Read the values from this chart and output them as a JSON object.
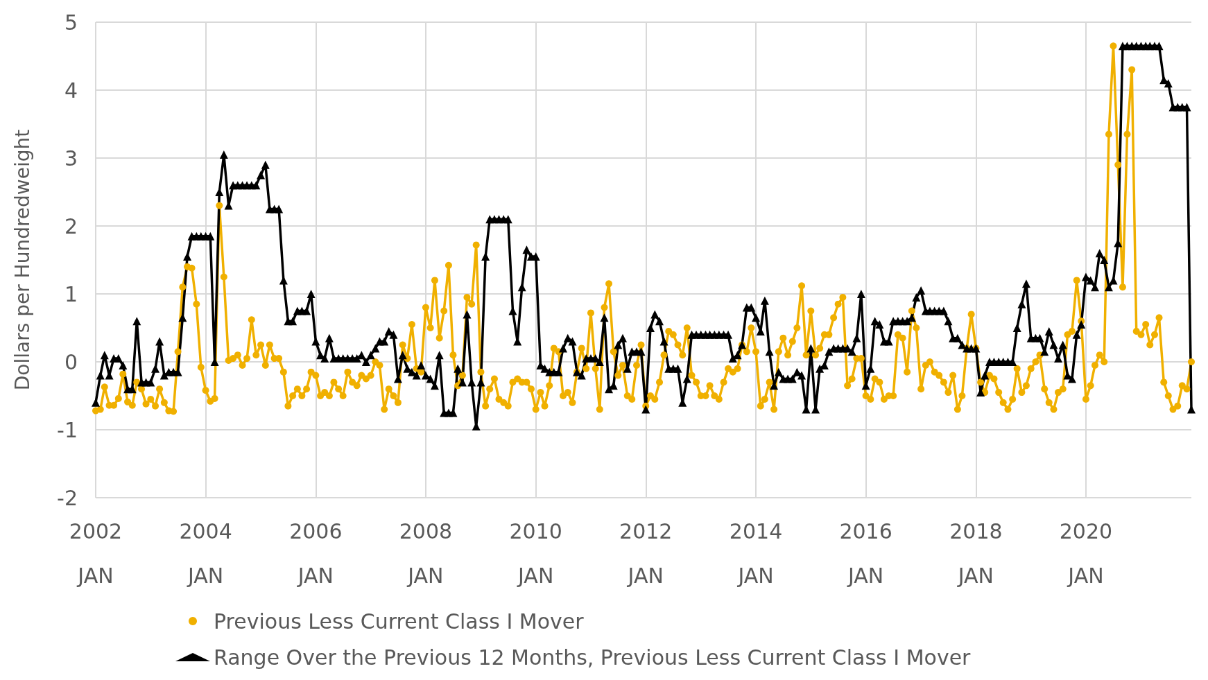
{
  "chart_data": {
    "type": "line",
    "ylabel": "Dollars per Hundredweight",
    "x": [
      "2002-01",
      "2002-02",
      "2002-03",
      "2002-04",
      "2002-05",
      "2002-06",
      "2002-07",
      "2002-08",
      "2002-09",
      "2002-10",
      "2002-11",
      "2002-12",
      "2003-01",
      "2003-02",
      "2003-03",
      "2003-04",
      "2003-05",
      "2003-06",
      "2003-07",
      "2003-08",
      "2003-09",
      "2003-10",
      "2003-11",
      "2003-12",
      "2004-01",
      "2004-02",
      "2004-03",
      "2004-04",
      "2004-05",
      "2004-06",
      "2004-07",
      "2004-08",
      "2004-09",
      "2004-10",
      "2004-11",
      "2004-12",
      "2005-01",
      "2005-02",
      "2005-03",
      "2005-04",
      "2005-05",
      "2005-06",
      "2005-07",
      "2005-08",
      "2005-09",
      "2005-10",
      "2005-11",
      "2005-12",
      "2006-01",
      "2006-02",
      "2006-03",
      "2006-04",
      "2006-05",
      "2006-06",
      "2006-07",
      "2006-08",
      "2006-09",
      "2006-10",
      "2006-11",
      "2006-12",
      "2007-01",
      "2007-02",
      "2007-03",
      "2007-04",
      "2007-05",
      "2007-06",
      "2007-07",
      "2007-08",
      "2007-09",
      "2007-10",
      "2007-11",
      "2007-12",
      "2008-01",
      "2008-02",
      "2008-03",
      "2008-04",
      "2008-05",
      "2008-06",
      "2008-07",
      "2008-08",
      "2008-09",
      "2008-10",
      "2008-11",
      "2008-12",
      "2009-01",
      "2009-02",
      "2009-03",
      "2009-04",
      "2009-05",
      "2009-06",
      "2009-07",
      "2009-08",
      "2009-09",
      "2009-10",
      "2009-11",
      "2009-12",
      "2010-01",
      "2010-02",
      "2010-03",
      "2010-04",
      "2010-05",
      "2010-06",
      "2010-07",
      "2010-08",
      "2010-09",
      "2010-10",
      "2010-11",
      "2010-12",
      "2011-01",
      "2011-02",
      "2011-03",
      "2011-04",
      "2011-05",
      "2011-06",
      "2011-07",
      "2011-08",
      "2011-09",
      "2011-10",
      "2011-11",
      "2011-12",
      "2012-01",
      "2012-02",
      "2012-03",
      "2012-04",
      "2012-05",
      "2012-06",
      "2012-07",
      "2012-08",
      "2012-09",
      "2012-10",
      "2012-11",
      "2012-12",
      "2013-01",
      "2013-02",
      "2013-03",
      "2013-04",
      "2013-05",
      "2013-06",
      "2013-07",
      "2013-08",
      "2013-09",
      "2013-10",
      "2013-11",
      "2013-12",
      "2014-01",
      "2014-02",
      "2014-03",
      "2014-04",
      "2014-05",
      "2014-06",
      "2014-07",
      "2014-08",
      "2014-09",
      "2014-10",
      "2014-11",
      "2014-12",
      "2015-01",
      "2015-02",
      "2015-03",
      "2015-04",
      "2015-05",
      "2015-06",
      "2015-07",
      "2015-08",
      "2015-09",
      "2015-10",
      "2015-11",
      "2015-12",
      "2016-01",
      "2016-02",
      "2016-03",
      "2016-04",
      "2016-05",
      "2016-06",
      "2016-07",
      "2016-08",
      "2016-09",
      "2016-10",
      "2016-11",
      "2016-12",
      "2017-01",
      "2017-02",
      "2017-03",
      "2017-04",
      "2017-05",
      "2017-06",
      "2017-07",
      "2017-08",
      "2017-09",
      "2017-10",
      "2017-11",
      "2017-12",
      "2018-01",
      "2018-02",
      "2018-03",
      "2018-04",
      "2018-05",
      "2018-06",
      "2018-07",
      "2018-08",
      "2018-09",
      "2018-10",
      "2018-11",
      "2018-12",
      "2019-01",
      "2019-02",
      "2019-03",
      "2019-04",
      "2019-05",
      "2019-06",
      "2019-07",
      "2019-08",
      "2019-09",
      "2019-10",
      "2019-11",
      "2019-12",
      "2020-01",
      "2020-02",
      "2020-03",
      "2020-04",
      "2020-05",
      "2020-06",
      "2020-07",
      "2020-08",
      "2020-09",
      "2020-10",
      "2020-11",
      "2020-12",
      "2021-01",
      "2021-02",
      "2021-03",
      "2021-04",
      "2021-05",
      "2021-06",
      "2021-07",
      "2021-08",
      "2021-09",
      "2021-10",
      "2021-11",
      "2021-12"
    ],
    "series": [
      {
        "name": "Previous Less Current Class I Mover",
        "color": "#f0b000",
        "marker": "circle",
        "values": [
          -0.72,
          -0.7,
          -0.37,
          -0.64,
          -0.64,
          -0.54,
          -0.18,
          -0.59,
          -0.64,
          -0.3,
          -0.4,
          -0.62,
          -0.55,
          -0.65,
          -0.4,
          -0.6,
          -0.72,
          -0.73,
          0.15,
          1.1,
          1.4,
          1.38,
          0.85,
          -0.08,
          -0.42,
          -0.58,
          -0.54,
          2.3,
          1.25,
          0.02,
          0.05,
          0.1,
          -0.05,
          0.05,
          0.62,
          0.1,
          0.25,
          -0.05,
          0.25,
          0.05,
          0.05,
          -0.15,
          -0.65,
          -0.5,
          -0.4,
          -0.5,
          -0.4,
          -0.15,
          -0.2,
          -0.5,
          -0.45,
          -0.5,
          -0.3,
          -0.4,
          -0.5,
          -0.15,
          -0.3,
          -0.35,
          -0.2,
          -0.25,
          -0.2,
          0.0,
          -0.05,
          -0.7,
          -0.4,
          -0.5,
          -0.6,
          0.25,
          0.05,
          0.55,
          -0.1,
          -0.15,
          0.8,
          0.5,
          1.2,
          0.35,
          0.75,
          1.42,
          0.1,
          -0.35,
          -0.2,
          0.95,
          0.85,
          1.72,
          -0.15,
          -0.65,
          -0.4,
          -0.25,
          -0.55,
          -0.6,
          -0.65,
          -0.3,
          -0.25,
          -0.3,
          -0.3,
          -0.4,
          -0.7,
          -0.45,
          -0.65,
          -0.35,
          0.2,
          0.15,
          -0.5,
          -0.45,
          -0.6,
          -0.15,
          0.2,
          -0.1,
          0.72,
          -0.1,
          -0.7,
          0.8,
          1.15,
          0.15,
          -0.2,
          -0.05,
          -0.5,
          -0.55,
          -0.05,
          0.25,
          -0.65,
          -0.5,
          -0.55,
          -0.3,
          0.1,
          0.45,
          0.4,
          0.25,
          0.1,
          0.5,
          -0.2,
          -0.3,
          -0.5,
          -0.5,
          -0.35,
          -0.5,
          -0.55,
          -0.3,
          -0.1,
          -0.15,
          -0.1,
          0.25,
          0.15,
          0.5,
          0.15,
          -0.65,
          -0.55,
          -0.3,
          -0.7,
          0.15,
          0.35,
          0.1,
          0.3,
          0.5,
          1.12,
          0.1,
          0.75,
          0.1,
          0.2,
          0.4,
          0.4,
          0.65,
          0.85,
          0.95,
          -0.35,
          -0.25,
          0.05,
          0.05,
          -0.5,
          -0.55,
          -0.25,
          -0.3,
          -0.55,
          -0.5,
          -0.5,
          0.4,
          0.35,
          -0.15,
          0.75,
          0.5,
          -0.4,
          -0.05,
          0.0,
          -0.15,
          -0.2,
          -0.3,
          -0.45,
          -0.2,
          -0.7,
          -0.5,
          0.2,
          0.7,
          0.2,
          -0.3,
          -0.45,
          -0.2,
          -0.25,
          -0.45,
          -0.6,
          -0.7,
          -0.55,
          -0.1,
          -0.45,
          -0.35,
          -0.1,
          0.0,
          0.1,
          -0.4,
          -0.6,
          -0.7,
          -0.45,
          -0.4,
          0.4,
          0.45,
          1.2,
          0.6,
          -0.55,
          -0.35,
          -0.05,
          0.1,
          0.0,
          3.35,
          4.65,
          2.9,
          1.1,
          3.35,
          4.3,
          0.45,
          0.4,
          0.55,
          0.25,
          0.4,
          0.65,
          -0.3,
          -0.5,
          -0.7,
          -0.65,
          -0.35,
          -0.4,
          0.0
        ]
      },
      {
        "name": "Range Over the Previous 12 Months, Previous Less Current Class I Mover",
        "color": "#000000",
        "marker": "triangle",
        "values": [
          -0.6,
          -0.2,
          0.1,
          -0.2,
          0.05,
          0.05,
          -0.05,
          -0.4,
          -0.4,
          0.6,
          -0.3,
          -0.3,
          -0.3,
          -0.1,
          0.3,
          -0.2,
          -0.15,
          -0.15,
          -0.15,
          0.65,
          1.55,
          1.85,
          1.85,
          1.85,
          1.85,
          1.85,
          0.0,
          2.5,
          3.05,
          2.3,
          2.6,
          2.6,
          2.6,
          2.6,
          2.6,
          2.6,
          2.75,
          2.9,
          2.25,
          2.25,
          2.25,
          1.2,
          0.6,
          0.6,
          0.75,
          0.75,
          0.75,
          1.0,
          0.3,
          0.1,
          0.05,
          0.35,
          0.05,
          0.05,
          0.05,
          0.05,
          0.05,
          0.05,
          0.1,
          0.0,
          0.1,
          0.2,
          0.3,
          0.3,
          0.45,
          0.4,
          -0.25,
          0.1,
          -0.1,
          -0.15,
          -0.2,
          -0.05,
          -0.2,
          -0.25,
          -0.35,
          0.1,
          -0.75,
          -0.75,
          -0.75,
          -0.1,
          -0.3,
          0.7,
          -0.3,
          -0.95,
          -0.3,
          1.55,
          2.1,
          2.1,
          2.1,
          2.1,
          2.1,
          0.75,
          0.3,
          1.1,
          1.65,
          1.55,
          1.55,
          -0.05,
          -0.1,
          -0.15,
          -0.15,
          -0.15,
          0.2,
          0.35,
          0.3,
          -0.15,
          -0.2,
          0.05,
          0.05,
          0.05,
          0.0,
          0.65,
          -0.4,
          -0.35,
          0.25,
          0.35,
          -0.1,
          0.15,
          0.15,
          0.15,
          -0.7,
          0.5,
          0.7,
          0.6,
          0.3,
          -0.1,
          -0.1,
          -0.1,
          -0.6,
          -0.25,
          0.4,
          0.4,
          0.4,
          0.4,
          0.4,
          0.4,
          0.4,
          0.4,
          0.4,
          0.05,
          0.1,
          0.25,
          0.8,
          0.8,
          0.65,
          0.45,
          0.9,
          0.15,
          -0.35,
          -0.15,
          -0.25,
          -0.25,
          -0.25,
          -0.15,
          -0.2,
          -0.7,
          0.2,
          -0.7,
          -0.1,
          -0.05,
          0.15,
          0.2,
          0.2,
          0.2,
          0.2,
          0.15,
          0.35,
          1.0,
          -0.35,
          -0.1,
          0.6,
          0.55,
          0.3,
          0.3,
          0.6,
          0.6,
          0.6,
          0.6,
          0.65,
          0.95,
          1.05,
          0.75,
          0.75,
          0.75,
          0.75,
          0.75,
          0.6,
          0.35,
          0.35,
          0.25,
          0.2,
          0.2,
          0.2,
          -0.45,
          -0.2,
          0.0,
          0.0,
          0.0,
          0.0,
          0.0,
          0.0,
          0.5,
          0.85,
          1.15,
          0.35,
          0.35,
          0.35,
          0.15,
          0.45,
          0.25,
          0.05,
          0.25,
          -0.2,
          -0.25,
          0.4,
          0.55,
          1.25,
          1.2,
          1.1,
          1.6,
          1.5,
          1.1,
          1.2,
          1.75,
          4.65,
          4.65,
          4.65,
          4.65,
          4.65,
          4.65,
          4.65,
          4.65,
          4.65,
          4.15,
          4.1,
          3.75,
          3.75,
          3.75,
          3.75,
          -0.7
        ]
      }
    ],
    "xlim": [
      "2002-01",
      "2021-12"
    ],
    "xticks": [
      {
        "value": "2002-01",
        "label": "2002\nJAN"
      },
      {
        "value": "2004-01",
        "label": "2004\nJAN"
      },
      {
        "value": "2006-01",
        "label": "2006\nJAN"
      },
      {
        "value": "2008-01",
        "label": "2008\nJAN"
      },
      {
        "value": "2010-01",
        "label": "2010\nJAN"
      },
      {
        "value": "2012-01",
        "label": "2012\nJAN"
      },
      {
        "value": "2014-01",
        "label": "2014\nJAN"
      },
      {
        "value": "2016-01",
        "label": "2016\nJAN"
      },
      {
        "value": "2018-01",
        "label": "2018\nJAN"
      },
      {
        "value": "2020-01",
        "label": "2020\nJAN"
      }
    ],
    "ylim": [
      -2,
      5
    ],
    "yticks": [
      -2,
      -1,
      0,
      1,
      2,
      3,
      4,
      5
    ],
    "grid": true,
    "legend": "bottom",
    "line_style": "solid"
  }
}
